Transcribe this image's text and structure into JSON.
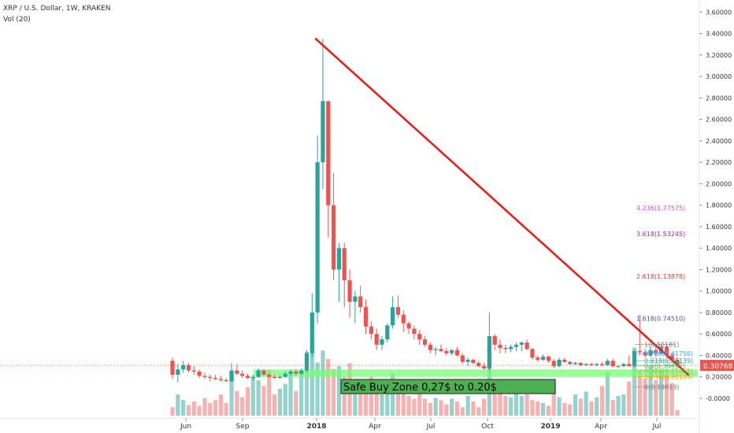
{
  "legend": {
    "symbol_line": "XRP / U.S. Dollar, 1W, KRAKEN",
    "volume_line": "Vol (20)"
  },
  "chart_data": {
    "type": "candlestick",
    "symbol": "XRP / U.S. Dollar",
    "interval": "1W",
    "exchange": "KRAKEN",
    "y_axis": {
      "ticks": [
        "3.60000",
        "3.40000",
        "3.20000",
        "3.00000",
        "2.80000",
        "2.60000",
        "2.40000",
        "2.20000",
        "2.00000",
        "1.80000",
        "1.60000",
        "1.40000",
        "1.20000",
        "1.00000",
        "0.80000",
        "0.60000",
        "0.40000",
        "0.20000",
        "-0.0000"
      ],
      "range": [
        -0.05,
        3.72
      ]
    },
    "x_axis": {
      "ticks": [
        "Jun",
        "Sep",
        "2018",
        "Apr",
        "Jul",
        "Oct",
        "2019",
        "Apr",
        "Jul"
      ]
    },
    "last_price": "0.30768",
    "last_price_value": 0.30768,
    "colors": {
      "up": "#26a69a",
      "down": "#ef5350",
      "up_volume": "#80cbc4",
      "down_volume": "#f5a3a3",
      "trendline": "#e8201c",
      "buy_zone_fill": "#6dff6d",
      "buy_zone_label_bg": "#4caf50",
      "last_price_badge": "#ef5350"
    },
    "trendline": {
      "from": [
        "2018",
        3.35
      ],
      "to": [
        "Aug 2019",
        0.22
      ]
    },
    "buy_zone": {
      "label": "Safe Buy Zone 0,27$ to 0.20$",
      "high": 0.27,
      "low": 0.2
    },
    "fib_levels": [
      {
        "label": "4.236(1.77575)",
        "value": 1.77575,
        "color": "#e040fb"
      },
      {
        "label": "3.618(1.53245)",
        "value": 1.53245,
        "color": "#9c27b0"
      },
      {
        "label": "2.618(1.13878)",
        "value": 1.13878,
        "color": "#e53935"
      },
      {
        "label": "1.618(0.74510)",
        "value": 0.7451,
        "color": "#3f51b5"
      },
      {
        "label": "1(0.50181)",
        "value": 0.50181,
        "color": "#757575"
      },
      {
        "label": "0.786(0.41756)",
        "value": 0.41756,
        "color": "#42a5f5"
      },
      {
        "label": "0.618(0.35139)",
        "value": 0.35139,
        "color": "#26a69a"
      },
      {
        "label": "0.5(0.30497)",
        "value": 0.30497,
        "color": "#4caf50"
      },
      {
        "label": "0.382(0.25855)",
        "value": 0.25855,
        "color": "#8bc34a"
      },
      {
        "label": "0.236(0.20104)",
        "value": 0.20104,
        "color": "#ff9800"
      },
      {
        "label": "0(0.10813)",
        "value": 0.10813,
        "color": "#787b86"
      }
    ],
    "candles": [
      [
        0.35,
        0.38,
        0.18,
        0.22
      ],
      [
        0.22,
        0.32,
        0.15,
        0.27
      ],
      [
        0.27,
        0.35,
        0.24,
        0.31
      ],
      [
        0.31,
        0.33,
        0.24,
        0.26
      ],
      [
        0.26,
        0.3,
        0.22,
        0.25
      ],
      [
        0.25,
        0.27,
        0.19,
        0.21
      ],
      [
        0.21,
        0.24,
        0.18,
        0.2
      ],
      [
        0.2,
        0.22,
        0.16,
        0.19
      ],
      [
        0.19,
        0.22,
        0.17,
        0.18
      ],
      [
        0.18,
        0.21,
        0.16,
        0.17
      ],
      [
        0.17,
        0.19,
        0.15,
        0.16
      ],
      [
        0.16,
        0.33,
        0.15,
        0.26
      ],
      [
        0.26,
        0.32,
        0.22,
        0.23
      ],
      [
        0.23,
        0.26,
        0.19,
        0.21
      ],
      [
        0.21,
        0.23,
        0.18,
        0.19
      ],
      [
        0.19,
        0.22,
        0.17,
        0.2
      ],
      [
        0.2,
        0.28,
        0.19,
        0.26
      ],
      [
        0.26,
        0.27,
        0.21,
        0.22
      ],
      [
        0.22,
        0.24,
        0.19,
        0.2
      ],
      [
        0.2,
        0.22,
        0.18,
        0.19
      ],
      [
        0.19,
        0.21,
        0.18,
        0.2
      ],
      [
        0.2,
        0.25,
        0.19,
        0.23
      ],
      [
        0.23,
        0.27,
        0.21,
        0.25
      ],
      [
        0.25,
        0.27,
        0.21,
        0.23
      ],
      [
        0.23,
        0.28,
        0.22,
        0.26
      ],
      [
        0.26,
        0.45,
        0.24,
        0.42
      ],
      [
        0.42,
        0.98,
        0.38,
        0.8
      ],
      [
        0.8,
        2.45,
        0.7,
        2.2
      ],
      [
        2.2,
        3.35,
        1.95,
        2.77
      ],
      [
        2.77,
        2.77,
        1.5,
        1.8
      ],
      [
        1.8,
        2.1,
        1.1,
        1.2
      ],
      [
        1.2,
        1.45,
        0.9,
        1.4
      ],
      [
        1.4,
        1.45,
        0.85,
        1.1
      ],
      [
        1.1,
        1.2,
        0.75,
        0.9
      ],
      [
        0.9,
        1.0,
        0.7,
        0.95
      ],
      [
        0.95,
        1.05,
        0.8,
        0.85
      ],
      [
        0.85,
        0.92,
        0.6,
        0.67
      ],
      [
        0.67,
        0.72,
        0.55,
        0.6
      ],
      [
        0.6,
        0.65,
        0.45,
        0.5
      ],
      [
        0.5,
        0.58,
        0.45,
        0.55
      ],
      [
        0.55,
        0.7,
        0.52,
        0.68
      ],
      [
        0.68,
        0.95,
        0.65,
        0.85
      ],
      [
        0.85,
        0.96,
        0.75,
        0.78
      ],
      [
        0.78,
        0.82,
        0.62,
        0.7
      ],
      [
        0.7,
        0.72,
        0.6,
        0.65
      ],
      [
        0.65,
        0.68,
        0.55,
        0.6
      ],
      [
        0.6,
        0.64,
        0.5,
        0.55
      ],
      [
        0.55,
        0.58,
        0.48,
        0.5
      ],
      [
        0.5,
        0.52,
        0.42,
        0.45
      ],
      [
        0.45,
        0.48,
        0.4,
        0.46
      ],
      [
        0.46,
        0.5,
        0.43,
        0.44
      ],
      [
        0.44,
        0.47,
        0.4,
        0.42
      ],
      [
        0.42,
        0.46,
        0.4,
        0.45
      ],
      [
        0.45,
        0.48,
        0.39,
        0.4
      ],
      [
        0.4,
        0.42,
        0.32,
        0.34
      ],
      [
        0.34,
        0.38,
        0.3,
        0.36
      ],
      [
        0.36,
        0.37,
        0.32,
        0.33
      ],
      [
        0.33,
        0.35,
        0.29,
        0.3
      ],
      [
        0.3,
        0.33,
        0.27,
        0.28
      ],
      [
        0.28,
        0.8,
        0.26,
        0.58
      ],
      [
        0.58,
        0.6,
        0.45,
        0.5
      ],
      [
        0.5,
        0.55,
        0.42,
        0.47
      ],
      [
        0.47,
        0.5,
        0.42,
        0.46
      ],
      [
        0.46,
        0.5,
        0.43,
        0.48
      ],
      [
        0.48,
        0.52,
        0.44,
        0.5
      ],
      [
        0.5,
        0.53,
        0.44,
        0.52
      ],
      [
        0.52,
        0.55,
        0.45,
        0.46
      ],
      [
        0.46,
        0.47,
        0.36,
        0.38
      ],
      [
        0.38,
        0.4,
        0.34,
        0.36
      ],
      [
        0.36,
        0.41,
        0.35,
        0.39
      ],
      [
        0.39,
        0.4,
        0.33,
        0.35
      ],
      [
        0.35,
        0.37,
        0.28,
        0.3
      ],
      [
        0.3,
        0.38,
        0.29,
        0.36
      ],
      [
        0.36,
        0.38,
        0.33,
        0.34
      ],
      [
        0.34,
        0.35,
        0.31,
        0.32
      ],
      [
        0.32,
        0.34,
        0.31,
        0.33
      ],
      [
        0.33,
        0.34,
        0.3,
        0.31
      ],
      [
        0.31,
        0.33,
        0.3,
        0.32
      ],
      [
        0.32,
        0.33,
        0.3,
        0.31
      ],
      [
        0.31,
        0.33,
        0.3,
        0.32
      ],
      [
        0.32,
        0.34,
        0.3,
        0.31
      ],
      [
        0.31,
        0.37,
        0.3,
        0.35
      ],
      [
        0.35,
        0.37,
        0.29,
        0.3
      ],
      [
        0.3,
        0.31,
        0.28,
        0.3
      ],
      [
        0.3,
        0.33,
        0.29,
        0.32
      ],
      [
        0.32,
        0.4,
        0.31,
        0.3
      ],
      [
        0.3,
        0.45,
        0.29,
        0.44
      ],
      [
        0.44,
        0.78,
        0.4,
        0.43
      ],
      [
        0.43,
        0.46,
        0.38,
        0.4
      ],
      [
        0.4,
        0.48,
        0.38,
        0.45
      ],
      [
        0.45,
        0.49,
        0.39,
        0.42
      ],
      [
        0.42,
        0.51,
        0.4,
        0.48
      ],
      [
        0.48,
        0.5,
        0.38,
        0.4
      ],
      [
        0.4,
        0.42,
        0.34,
        0.36
      ],
      [
        0.36,
        0.38,
        0.3,
        0.31
      ]
    ],
    "volume": [
      0.12,
      0.3,
      0.22,
      0.15,
      0.2,
      0.14,
      0.25,
      0.18,
      0.22,
      0.3,
      0.18,
      0.62,
      0.35,
      0.26,
      0.4,
      0.55,
      0.5,
      0.42,
      0.65,
      0.3,
      0.38,
      0.45,
      0.6,
      0.35,
      0.62,
      0.9,
      0.96,
      0.75,
      0.92,
      0.8,
      0.66,
      0.7,
      0.55,
      0.74,
      0.5,
      0.48,
      0.44,
      0.55,
      0.38,
      0.3,
      0.46,
      0.6,
      0.36,
      0.4,
      0.28,
      0.24,
      0.32,
      0.24,
      0.18,
      0.25,
      0.22,
      0.16,
      0.24,
      0.2,
      0.12,
      0.28,
      0.2,
      0.12,
      0.24,
      0.72,
      0.32,
      0.46,
      0.28,
      0.26,
      0.32,
      0.28,
      0.3,
      0.22,
      0.2,
      0.18,
      0.14,
      0.5,
      0.26,
      0.18,
      0.16,
      0.3,
      0.24,
      0.34,
      0.2,
      0.26,
      0.42,
      0.62,
      0.22,
      0.28,
      0.3,
      0.48,
      0.96,
      0.64,
      0.52,
      0.7,
      0.5,
      0.64,
      0.58,
      0.46,
      0.08
    ]
  }
}
